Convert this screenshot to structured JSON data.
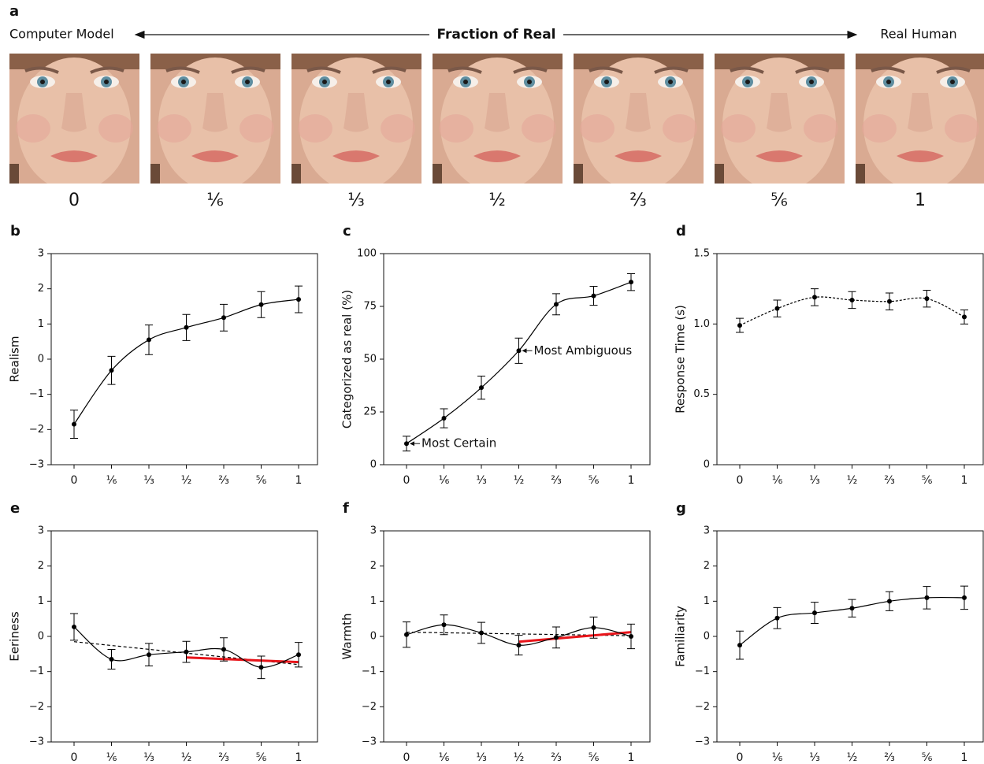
{
  "panel_a": {
    "label": "a",
    "left_label": "Computer Model",
    "title": "Fraction of Real",
    "right_label": "Real Human",
    "fractions": [
      "0",
      "⅙",
      "⅓",
      "½",
      "⅔",
      "⅚",
      "1"
    ]
  },
  "chart_data": [
    {
      "type": "line",
      "panel_label": "b",
      "ylabel": "Realism",
      "categories": [
        "0",
        "⅙",
        "⅓",
        "½",
        "⅔",
        "⅚",
        "1"
      ],
      "series": [
        {
          "color": "#000000",
          "dashed": false,
          "values": [
            -1.85,
            -0.32,
            0.55,
            0.9,
            1.18,
            1.55,
            1.7
          ],
          "errors": [
            0.4,
            0.4,
            0.42,
            0.37,
            0.38,
            0.37,
            0.38
          ]
        }
      ],
      "ylim": [
        -3,
        3
      ],
      "yticks": [
        {
          "value": -3,
          "label": "−3"
        },
        {
          "value": -2,
          "label": "−2"
        },
        {
          "value": -1,
          "label": "−1"
        },
        0,
        1,
        2,
        3
      ]
    },
    {
      "type": "line",
      "panel_label": "c",
      "ylabel": "Categorized as real (%)",
      "categories": [
        "0",
        "⅙",
        "⅓",
        "½",
        "⅔",
        "⅚",
        "1"
      ],
      "series": [
        {
          "color": "#000000",
          "dashed": false,
          "values": [
            10,
            22,
            36.5,
            54,
            76,
            80,
            86.5
          ],
          "errors": [
            3.5,
            4.5,
            5.5,
            6,
            5,
            4.5,
            4
          ]
        }
      ],
      "annotations": [
        {
          "text": "Most Certain",
          "category": "0"
        },
        {
          "text": "Most Ambiguous",
          "category": "½"
        }
      ],
      "ylim": [
        0,
        100
      ],
      "yticks": [
        0,
        25,
        50,
        75,
        100
      ]
    },
    {
      "type": "line",
      "panel_label": "d",
      "ylabel": "Response Time (s)",
      "categories": [
        "0",
        "⅙",
        "⅓",
        "½",
        "⅔",
        "⅚",
        "1"
      ],
      "series": [
        {
          "color": "#000000",
          "dashed": true,
          "values": [
            0.99,
            1.11,
            1.19,
            1.17,
            1.16,
            1.18,
            1.05
          ],
          "errors": [
            0.05,
            0.06,
            0.06,
            0.06,
            0.06,
            0.06,
            0.05
          ]
        }
      ],
      "ylim": [
        0,
        1.5
      ],
      "yticks": [
        0,
        0.5,
        {
          "value": 1,
          "label": "1.0"
        },
        1.5
      ]
    },
    {
      "type": "line",
      "panel_label": "e",
      "ylabel": "Eeriness",
      "categories": [
        "0",
        "⅙",
        "⅓",
        "½",
        "⅔",
        "⅚",
        "1"
      ],
      "series": [
        {
          "color": "#000000",
          "dashed": false,
          "values": [
            0.27,
            -0.65,
            -0.52,
            -0.44,
            -0.37,
            -0.88,
            -0.52
          ],
          "errors": [
            0.38,
            0.28,
            0.32,
            0.3,
            0.33,
            0.32,
            0.35
          ]
        }
      ],
      "fit_lines": [
        {
          "color": "#000000",
          "dashed": true,
          "categories": [
            "0",
            "1"
          ],
          "values": [
            -0.15,
            -0.8
          ]
        },
        {
          "color": "#e8141a",
          "dashed": false,
          "categories": [
            "½",
            "1"
          ],
          "values": [
            -0.6,
            -0.73
          ]
        }
      ],
      "ylim": [
        -3,
        3
      ],
      "yticks": [
        {
          "value": -3,
          "label": "−3"
        },
        {
          "value": -2,
          "label": "−2"
        },
        {
          "value": -1,
          "label": "−1"
        },
        0,
        1,
        2,
        3
      ]
    },
    {
      "type": "line",
      "panel_label": "f",
      "ylabel": "Warmth",
      "categories": [
        "0",
        "⅙",
        "⅓",
        "½",
        "⅔",
        "⅚",
        "1"
      ],
      "series": [
        {
          "color": "#000000",
          "dashed": false,
          "values": [
            0.05,
            0.33,
            0.1,
            -0.25,
            -0.03,
            0.25,
            0.0
          ],
          "errors": [
            0.36,
            0.28,
            0.3,
            0.28,
            0.3,
            0.3,
            0.35
          ]
        }
      ],
      "fit_lines": [
        {
          "color": "#000000",
          "dashed": true,
          "categories": [
            "0",
            "1"
          ],
          "values": [
            0.12,
            0.02
          ]
        },
        {
          "color": "#e8141a",
          "dashed": false,
          "categories": [
            "½",
            "1"
          ],
          "values": [
            -0.15,
            0.12
          ]
        }
      ],
      "ylim": [
        -3,
        3
      ],
      "yticks": [
        {
          "value": -3,
          "label": "−3"
        },
        {
          "value": -2,
          "label": "−2"
        },
        {
          "value": -1,
          "label": "−1"
        },
        0,
        1,
        2,
        3
      ]
    },
    {
      "type": "line",
      "panel_label": "g",
      "ylabel": "Familiarity",
      "categories": [
        "0",
        "⅙",
        "⅓",
        "½",
        "⅔",
        "⅚",
        "1"
      ],
      "series": [
        {
          "color": "#000000",
          "dashed": false,
          "values": [
            -0.25,
            0.52,
            0.67,
            0.8,
            1.0,
            1.1,
            1.1
          ],
          "errors": [
            0.4,
            0.3,
            0.3,
            0.25,
            0.27,
            0.32,
            0.33
          ]
        }
      ],
      "ylim": [
        -3,
        3
      ],
      "yticks": [
        {
          "value": -3,
          "label": "−3"
        },
        {
          "value": -2,
          "label": "−2"
        },
        {
          "value": -1,
          "label": "−1"
        },
        0,
        1,
        2,
        3
      ]
    }
  ]
}
